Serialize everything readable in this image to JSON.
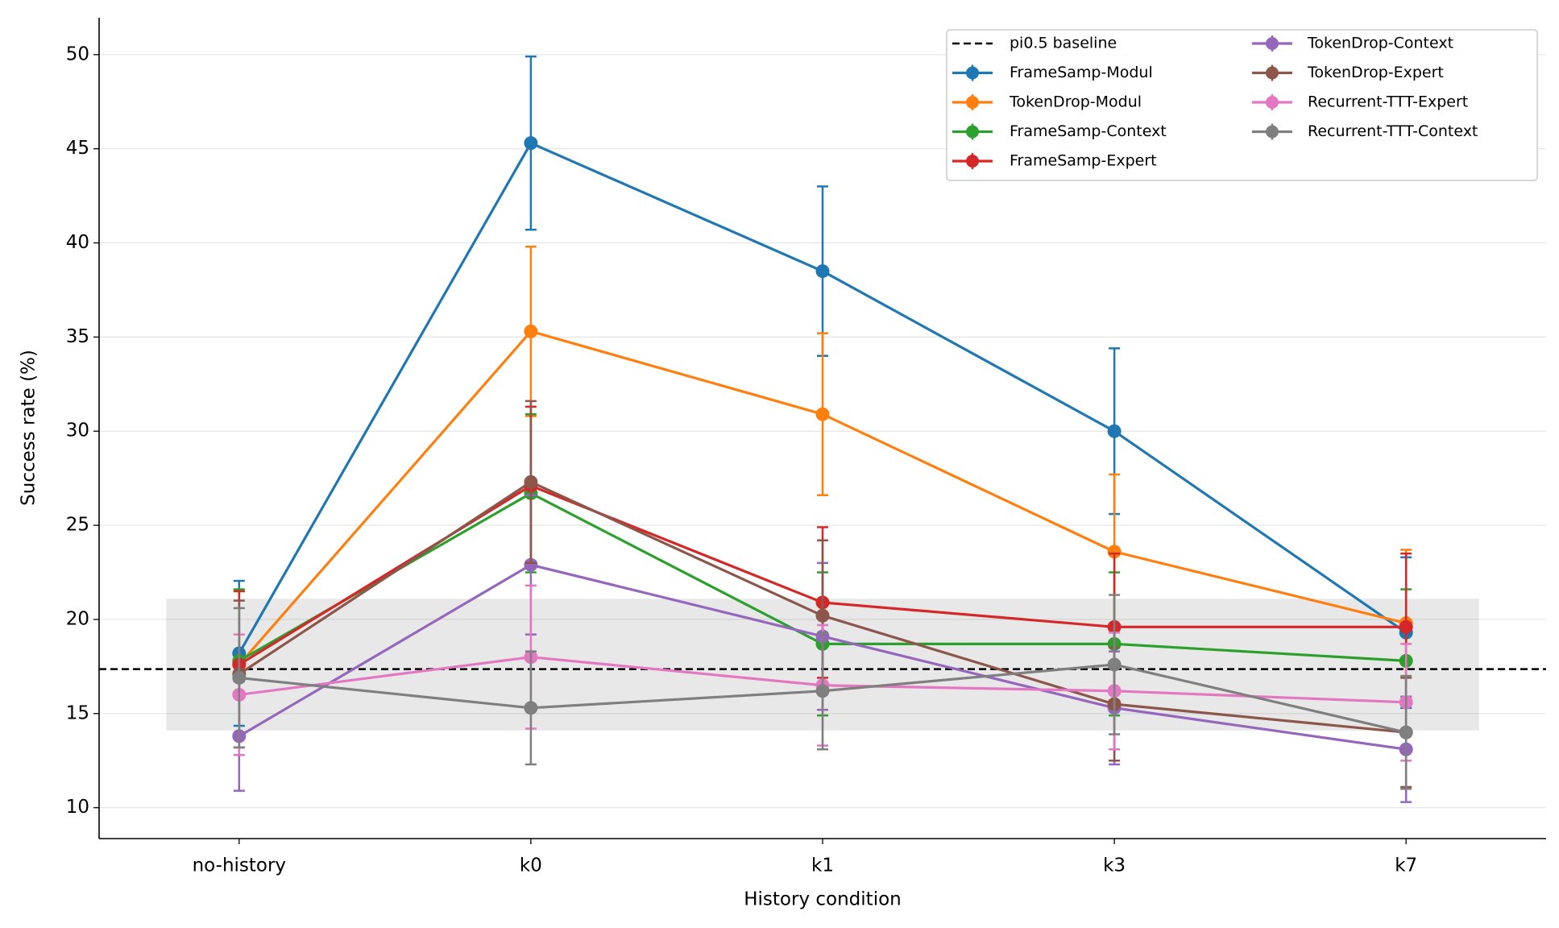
{
  "chart_data": {
    "type": "line",
    "x_label": "History condition",
    "y_label": "Success rate (%)",
    "categories": [
      "no-history",
      "k0",
      "k1",
      "k3",
      "k7"
    ],
    "ylim": [
      8.36,
      51.96
    ],
    "yticks": [
      10,
      15,
      20,
      25,
      30,
      35,
      40,
      45,
      50
    ],
    "grid": true,
    "band": {
      "ylim": [
        14.1,
        21.1
      ],
      "color": "#e8e8e8"
    },
    "baseline": {
      "name": "pi0.5 baseline",
      "value": 17.36,
      "color": "#000000"
    },
    "series": [
      {
        "name": "FrameSamp-Modul",
        "color": "#1f77b4",
        "values": [
          18.2,
          45.3,
          38.5,
          30.0,
          19.3
        ],
        "errors": [
          3.85,
          4.6,
          4.5,
          4.4,
          4.0
        ]
      },
      {
        "name": "TokenDrop-Modul",
        "color": "#ff7f0e",
        "values": [
          17.6,
          35.3,
          30.9,
          23.6,
          19.8
        ],
        "errors": [
          3.9,
          4.5,
          4.3,
          4.1,
          3.9
        ]
      },
      {
        "name": "FrameSamp-Context",
        "color": "#2ca02c",
        "values": [
          17.8,
          26.7,
          18.7,
          18.7,
          17.8
        ],
        "errors": [
          3.8,
          4.2,
          3.8,
          3.8,
          3.8
        ]
      },
      {
        "name": "FrameSamp-Expert",
        "color": "#d62728",
        "values": [
          17.6,
          27.1,
          20.9,
          19.6,
          19.6
        ],
        "errors": [
          3.9,
          4.2,
          4.0,
          3.9,
          3.9
        ]
      },
      {
        "name": "TokenDrop-Context",
        "color": "#9467bd",
        "values": [
          13.8,
          22.9,
          19.1,
          15.3,
          13.1
        ],
        "errors": [
          2.9,
          3.7,
          3.9,
          3.0,
          2.8
        ]
      },
      {
        "name": "TokenDrop-Expert",
        "color": "#8c564b",
        "values": [
          17.1,
          27.3,
          20.2,
          15.5,
          14.0
        ],
        "errors": [
          3.9,
          4.3,
          4.0,
          3.0,
          2.9
        ]
      },
      {
        "name": "Recurrent-TTT-Expert",
        "color": "#e377c2",
        "values": [
          16.0,
          18.0,
          16.5,
          16.2,
          15.6
        ],
        "errors": [
          3.2,
          3.8,
          3.2,
          3.1,
          3.1
        ]
      },
      {
        "name": "Recurrent-TTT-Context",
        "color": "#7f7f7f",
        "values": [
          16.9,
          15.3,
          16.2,
          17.6,
          14.0
        ],
        "errors": [
          3.7,
          3.0,
          3.1,
          3.7,
          3.0
        ]
      }
    ]
  }
}
